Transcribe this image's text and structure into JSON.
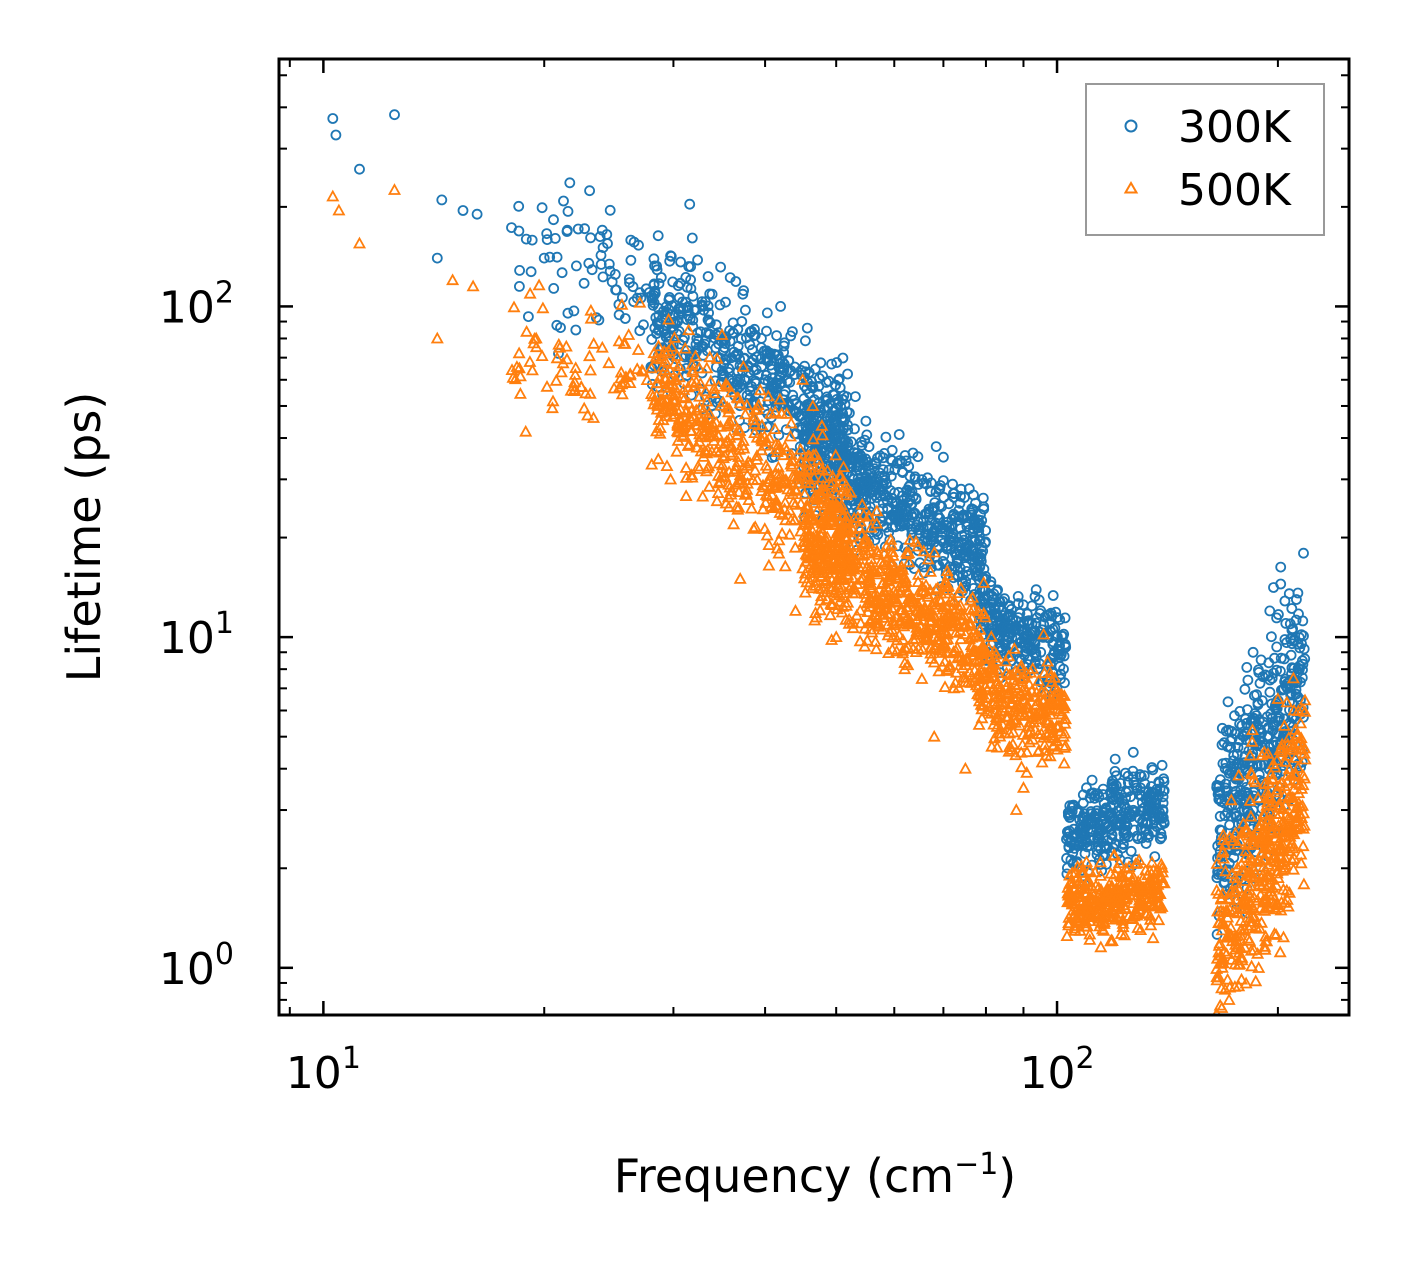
{
  "chart_data": {
    "type": "scatter",
    "title": "",
    "xlabel": "Frequency (cm",
    "xlabel_sup": "−1",
    "xlabel_end": ")",
    "ylabel": "Lifetime (ps)",
    "xscale": "log",
    "yscale": "log",
    "xlim": [
      8.7,
      250
    ],
    "ylim": [
      0.72,
      560
    ],
    "x_ticks": [
      {
        "value": 10,
        "base": "10",
        "exp": "1"
      },
      {
        "value": 100,
        "base": "10",
        "exp": "2"
      }
    ],
    "y_ticks": [
      {
        "value": 1,
        "base": "10",
        "exp": "0"
      },
      {
        "value": 10,
        "base": "10",
        "exp": "1"
      },
      {
        "value": 100,
        "base": "10",
        "exp": "2"
      }
    ],
    "legend_position": "top-right",
    "series": [
      {
        "name": "300K",
        "marker": "circle",
        "color": "#1f77b4",
        "explicit_points": [
          [
            10.3,
            370
          ],
          [
            10.4,
            330
          ],
          [
            11.2,
            260
          ],
          [
            12.5,
            380
          ],
          [
            14.5,
            210
          ],
          [
            15.5,
            195
          ],
          [
            16.2,
            190
          ],
          [
            14.3,
            140
          ],
          [
            18.5,
            115
          ],
          [
            20,
            140
          ],
          [
            21.5,
            170
          ],
          [
            24,
            170
          ],
          [
            23,
            135
          ],
          [
            25,
            125
          ],
          [
            27,
            110
          ],
          [
            42,
            100
          ],
          [
            36,
            70
          ],
          [
            40,
            60
          ],
          [
            50,
            40
          ],
          [
            53,
            35
          ],
          [
            70,
            35
          ],
          [
            58,
            27
          ],
          [
            60,
            23
          ],
          [
            74,
            28
          ],
          [
            90,
            11
          ],
          [
            95,
            9
          ],
          [
            100,
            7
          ],
          [
            105,
            3.1
          ],
          [
            115,
            2.8
          ],
          [
            125,
            3.8
          ],
          [
            130,
            3.5
          ],
          [
            168,
            5.3
          ],
          [
            175,
            5.1
          ],
          [
            185,
            9
          ],
          [
            195,
            12
          ],
          [
            205,
            11
          ],
          [
            210,
            6
          ]
        ],
        "clusters": [
          {
            "x": [
              18,
              32
            ],
            "y0": 140,
            "slope": -0.4,
            "spread": 0.16,
            "n": 90
          },
          {
            "x": [
              28,
              52
            ],
            "y0": 95,
            "slope": -1.3,
            "spread": 0.14,
            "n": 520
          },
          {
            "x": [
              45,
              80
            ],
            "y0": 37,
            "slope": -1.25,
            "spread": 0.12,
            "n": 650
          },
          {
            "x": [
              78,
              103
            ],
            "y0": 11.5,
            "slope": -0.9,
            "spread": 0.09,
            "n": 260
          },
          {
            "x": [
              103,
              140
            ],
            "y0": 2.5,
            "slope": 0.8,
            "spread": 0.09,
            "n": 330
          },
          {
            "x": [
              165,
              218
            ],
            "y0": 2.5,
            "slope": 4.2,
            "spread": 0.22,
            "n": 450
          }
        ]
      },
      {
        "name": "500K",
        "marker": "triangle",
        "color": "#ff7f0e",
        "explicit_points": [
          [
            10.3,
            215
          ],
          [
            10.5,
            195
          ],
          [
            11.2,
            155
          ],
          [
            12.5,
            225
          ],
          [
            14.3,
            80
          ],
          [
            15,
            120
          ],
          [
            16,
            115
          ],
          [
            18.5,
            65
          ],
          [
            19.5,
            80
          ],
          [
            21,
            75
          ],
          [
            24,
            75
          ],
          [
            28,
            65
          ],
          [
            36,
            55
          ],
          [
            45,
            60
          ],
          [
            37,
            15
          ],
          [
            44,
            12
          ],
          [
            50,
            10
          ],
          [
            62,
            8
          ],
          [
            68,
            5
          ],
          [
            75,
            4
          ],
          [
            88,
            3
          ],
          [
            90,
            3.5
          ],
          [
            95,
            6
          ],
          [
            98,
            6
          ],
          [
            102,
            5
          ],
          [
            104,
            1.9
          ],
          [
            112,
            1.6
          ],
          [
            120,
            1.4
          ],
          [
            130,
            1.3
          ],
          [
            140,
            1.8
          ],
          [
            168,
            1.0
          ],
          [
            172,
            1.5
          ],
          [
            185,
            2.5
          ],
          [
            200,
            6.5
          ],
          [
            210,
            7.5
          ],
          [
            215,
            2.2
          ]
        ],
        "clusters": [
          {
            "x": [
              18,
              30
            ],
            "y0": 72,
            "slope": -0.4,
            "spread": 0.14,
            "n": 80
          },
          {
            "x": [
              28,
              52
            ],
            "y0": 55,
            "slope": -1.5,
            "spread": 0.15,
            "n": 520
          },
          {
            "x": [
              45,
              80
            ],
            "y0": 20,
            "slope": -1.4,
            "spread": 0.13,
            "n": 650
          },
          {
            "x": [
              78,
              103
            ],
            "y0": 6.8,
            "slope": -0.7,
            "spread": 0.11,
            "n": 260
          },
          {
            "x": [
              103,
              140
            ],
            "y0": 1.55,
            "slope": 0.3,
            "spread": 0.08,
            "n": 330
          },
          {
            "x": [
              165,
              218
            ],
            "y0": 1.2,
            "slope": 4.0,
            "spread": 0.22,
            "n": 450
          }
        ]
      }
    ]
  }
}
